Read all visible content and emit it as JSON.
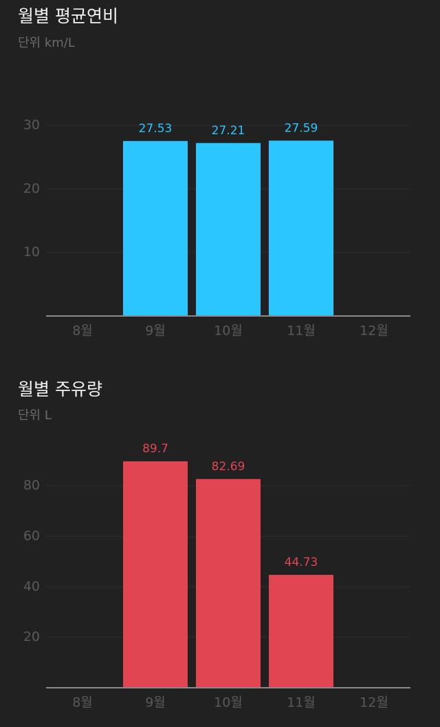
{
  "chart_data": [
    {
      "type": "bar",
      "title": "월별 평균연비",
      "subtitle": "단위 km/L",
      "categories": [
        "8월",
        "9월",
        "10월",
        "11월",
        "12월"
      ],
      "values": [
        null,
        27.53,
        27.21,
        27.59,
        null
      ],
      "color": "#2bc6ff",
      "ylim": [
        0,
        30
      ],
      "yticks": [
        10,
        20,
        30
      ],
      "grid": true
    },
    {
      "type": "bar",
      "title": "월별 주유량",
      "subtitle": "단위 L",
      "categories": [
        "8월",
        "9월",
        "10월",
        "11월",
        "12월"
      ],
      "values": [
        null,
        89.7,
        82.69,
        44.73,
        null
      ],
      "color": "#e24552",
      "ylim": [
        0,
        90
      ],
      "yticks": [
        20,
        40,
        60,
        80
      ],
      "grid": true
    }
  ]
}
